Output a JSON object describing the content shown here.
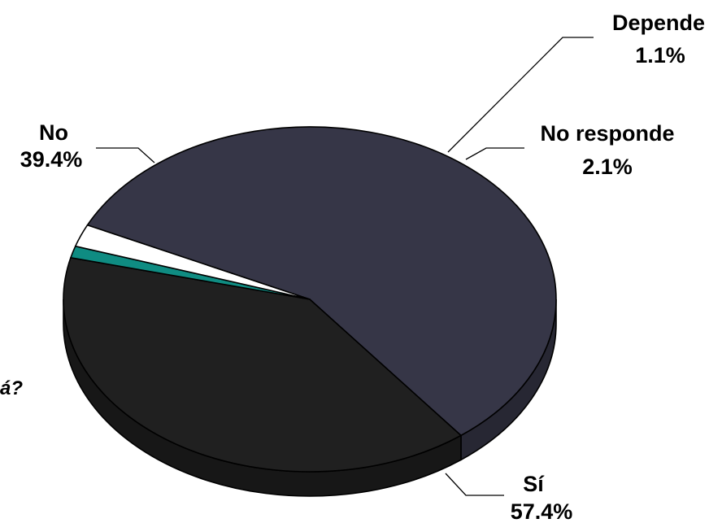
{
  "chart_data": {
    "type": "pie",
    "title": "",
    "slices": [
      {
        "name": "Sí",
        "value": 57.4,
        "label": "57.4%",
        "color": "#363647"
      },
      {
        "name": "No",
        "value": 39.4,
        "label": "39.4%",
        "color": "#202020"
      },
      {
        "name": "Depende",
        "value": 1.1,
        "label": "1.1%",
        "color": "#0f8c82"
      },
      {
        "name": "No responde",
        "value": 2.1,
        "label": "2.1%",
        "color": "#ffffff"
      }
    ],
    "style": "3d-tilted"
  },
  "cropped_text": "á?"
}
